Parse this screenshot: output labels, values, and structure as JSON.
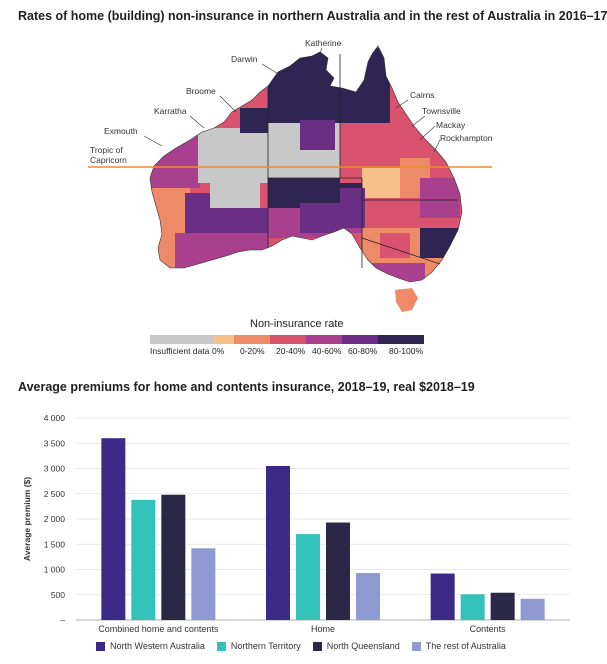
{
  "map": {
    "title": "Rates of home (building) non-insurance in northern Australia and in the rest of Australia in 2016–17",
    "labels": {
      "katherine": "Katherine",
      "darwin": "Darwin",
      "broome": "Broome",
      "karratha": "Karratha",
      "exmouth": "Exmouth",
      "tropic": "Tropic of",
      "capricorn": "Capricorn",
      "cairns": "Cairns",
      "townsville": "Townsville",
      "mackay": "Mackay",
      "rockhampton": "Rockhampton"
    },
    "legend": {
      "title": "Non-insurance rate",
      "items": [
        {
          "label": "Insufficient data",
          "color": "#c8c8c8"
        },
        {
          "label": "0%",
          "color": "#f6c08a"
        },
        {
          "label": "0-20%",
          "color": "#ef8a68"
        },
        {
          "label": "20-40%",
          "color": "#d9536e"
        },
        {
          "label": "40-60%",
          "color": "#a8408e"
        },
        {
          "label": "60-80%",
          "color": "#6a2f84"
        },
        {
          "label": "80-100%",
          "color": "#2e2552"
        }
      ]
    },
    "tropic_color": "#f08a2c"
  },
  "chart_data": {
    "type": "bar",
    "title": "Average premiums for home and contents insurance, 2018–19, real $2018–19",
    "ylabel": "Average premium ($)",
    "xlabel": "",
    "ylim": [
      0,
      4000
    ],
    "yticks": [
      "–",
      "500",
      "1 000",
      "1 500",
      "2 000",
      "2 500",
      "3 000",
      "3 500",
      "4 000"
    ],
    "categories": [
      "Combined home and contents",
      "Home",
      "Contents"
    ],
    "series": [
      {
        "name": "North Western Australia",
        "color": "#3d2a87",
        "values": [
          3600,
          3050,
          920
        ]
      },
      {
        "name": "Northern Territory",
        "color": "#33c1ba",
        "values": [
          2380,
          1700,
          510
        ]
      },
      {
        "name": "North Queensland",
        "color": "#2a2747",
        "values": [
          2480,
          1930,
          540
        ]
      },
      {
        "name": "The rest of Australia",
        "color": "#8f9ad3",
        "values": [
          1420,
          930,
          420
        ]
      }
    ],
    "grid": true,
    "legend_position": "bottom"
  }
}
